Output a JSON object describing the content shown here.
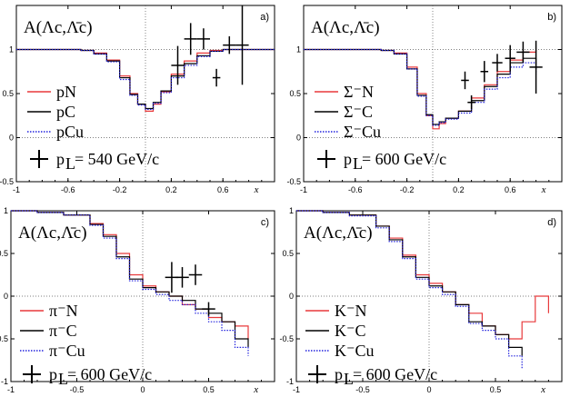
{
  "colors": {
    "red": "#e8393b",
    "black": "#000000",
    "blue": "#2222dd",
    "grid": "#555555"
  },
  "chart_data": [
    {
      "type": "line",
      "panel_label": "a)",
      "title": "A(Λc,Λ̄c)",
      "xlabel": "x",
      "xlim": [
        -1,
        1
      ],
      "ylim": [
        -0.5,
        1.5
      ],
      "xticks": [
        -1,
        -0.6,
        -0.2,
        0.2,
        0.6
      ],
      "xtick_labels": [
        "-1",
        "-0.6",
        "-0.2",
        "0.2",
        "0.6"
      ],
      "yticks": [
        -0.5,
        0,
        0.5,
        1
      ],
      "ytick_labels": [
        "-0.5",
        "0",
        "0.5",
        "1"
      ],
      "legend": [
        "pN",
        "pC",
        "pCu"
      ],
      "beam_label": "p",
      "beam_sub": "L",
      "beam_value": " = 540 GeV/c",
      "series": [
        {
          "name": "pN",
          "style": "red",
          "x": [
            -1,
            -0.8,
            -0.6,
            -0.5,
            -0.4,
            -0.3,
            -0.2,
            -0.12,
            -0.06,
            0,
            0.06,
            0.12,
            0.2,
            0.3,
            0.4,
            0.5,
            0.6,
            0.8,
            1
          ],
          "y": [
            1,
            1,
            1,
            0.99,
            0.96,
            0.88,
            0.7,
            0.5,
            0.38,
            0.3,
            0.38,
            0.52,
            0.72,
            0.87,
            0.96,
            0.99,
            1,
            1,
            1
          ]
        },
        {
          "name": "pC",
          "style": "black",
          "x": [
            -1,
            -0.8,
            -0.6,
            -0.5,
            -0.4,
            -0.3,
            -0.2,
            -0.12,
            -0.06,
            0,
            0.06,
            0.12,
            0.2,
            0.3,
            0.4,
            0.5,
            0.6,
            0.8,
            1
          ],
          "y": [
            1,
            1,
            1,
            0.99,
            0.95,
            0.87,
            0.68,
            0.49,
            0.38,
            0.33,
            0.4,
            0.53,
            0.7,
            0.84,
            0.93,
            0.98,
            1,
            1,
            1
          ]
        },
        {
          "name": "pCu",
          "style": "blue",
          "x": [
            -1,
            -0.8,
            -0.6,
            -0.5,
            -0.4,
            -0.3,
            -0.2,
            -0.12,
            -0.06,
            0,
            0.06,
            0.12,
            0.2,
            0.3,
            0.4,
            0.5,
            0.6,
            0.8,
            1
          ],
          "y": [
            1,
            1,
            1,
            0.99,
            0.95,
            0.86,
            0.66,
            0.48,
            0.37,
            0.32,
            0.39,
            0.51,
            0.68,
            0.82,
            0.92,
            0.98,
            1,
            1,
            1
          ]
        }
      ],
      "data_points": [
        {
          "x": 0.25,
          "y": 0.82,
          "xerr": 0.05,
          "yerr": 0.22
        },
        {
          "x": 0.35,
          "y": 1.12,
          "xerr": 0.05,
          "yerr": 0.18
        },
        {
          "x": 0.45,
          "y": 1.12,
          "xerr": 0.05,
          "yerr": 0.12
        },
        {
          "x": 0.55,
          "y": 0.68,
          "xerr": 0.03,
          "yerr": 0.1
        },
        {
          "x": 0.65,
          "y": 1.05,
          "xerr": 0.05,
          "yerr": 0.1
        },
        {
          "x": 0.75,
          "y": 1.05,
          "xerr": 0.05,
          "yerr": 0.45
        }
      ]
    },
    {
      "type": "line",
      "panel_label": "b)",
      "title": "A(Λc,Λ̄c)",
      "xlabel": "x",
      "xlim": [
        -1,
        1
      ],
      "ylim": [
        -0.5,
        1.5
      ],
      "xticks": [
        -1,
        -0.6,
        -0.2,
        0.2,
        0.6
      ],
      "xtick_labels": [
        "-1",
        "-0.6",
        "-0.2",
        "0.2",
        "0.6"
      ],
      "yticks": [
        -0.5,
        0,
        0.5,
        1
      ],
      "ytick_labels": [
        "-0.5",
        "0",
        "0.5",
        "1"
      ],
      "legend": [
        "Σ⁻N",
        "Σ⁻C",
        "Σ⁻Cu"
      ],
      "beam_label": "p",
      "beam_sub": "L",
      "beam_value": "= 600 GeV/c",
      "series": [
        {
          "name": "Σ-N",
          "style": "red",
          "x": [
            -1,
            -0.6,
            -0.4,
            -0.3,
            -0.2,
            -0.12,
            -0.05,
            0,
            0.05,
            0.1,
            0.2,
            0.3,
            0.4,
            0.5,
            0.6,
            0.7,
            0.8
          ],
          "y": [
            1,
            1,
            0.99,
            0.96,
            0.8,
            0.5,
            0.25,
            0.1,
            0.16,
            0.22,
            0.3,
            0.45,
            0.6,
            0.75,
            0.88,
            0.97,
            1
          ]
        },
        {
          "name": "Σ-C",
          "style": "black",
          "x": [
            -1,
            -0.6,
            -0.4,
            -0.3,
            -0.2,
            -0.12,
            -0.05,
            0,
            0.05,
            0.1,
            0.2,
            0.3,
            0.4,
            0.5,
            0.6,
            0.7,
            0.8
          ],
          "y": [
            1,
            1,
            0.99,
            0.95,
            0.78,
            0.48,
            0.26,
            0.15,
            0.18,
            0.22,
            0.3,
            0.42,
            0.58,
            0.72,
            0.85,
            0.9,
            0.78
          ]
        },
        {
          "name": "Σ-Cu",
          "style": "blue",
          "x": [
            -1,
            -0.6,
            -0.4,
            -0.3,
            -0.2,
            -0.12,
            -0.05,
            0,
            0.05,
            0.1,
            0.2,
            0.3,
            0.4,
            0.5,
            0.6,
            0.7,
            0.8
          ],
          "y": [
            1,
            1,
            0.99,
            0.95,
            0.78,
            0.47,
            0.25,
            0.14,
            0.17,
            0.21,
            0.28,
            0.4,
            0.55,
            0.68,
            0.8,
            0.85,
            0.72
          ]
        }
      ],
      "data_points": [
        {
          "x": 0.25,
          "y": 0.65,
          "xerr": 0.03,
          "yerr": 0.1
        },
        {
          "x": 0.3,
          "y": 0.4,
          "xerr": 0.03,
          "yerr": 0.08
        },
        {
          "x": 0.4,
          "y": 0.75,
          "xerr": 0.03,
          "yerr": 0.12
        },
        {
          "x": 0.5,
          "y": 0.85,
          "xerr": 0.04,
          "yerr": 0.1
        },
        {
          "x": 0.6,
          "y": 0.9,
          "xerr": 0.04,
          "yerr": 0.15
        },
        {
          "x": 0.7,
          "y": 0.97,
          "xerr": 0.05,
          "yerr": 0.12
        },
        {
          "x": 0.8,
          "y": 0.8,
          "xerr": 0.05,
          "yerr": 0.3
        }
      ]
    },
    {
      "type": "line",
      "panel_label": "c)",
      "title": "A(Λc,Λ̄c)",
      "xlabel": "x",
      "xlim": [
        -1,
        1
      ],
      "ylim": [
        -1,
        1
      ],
      "xticks": [
        -1,
        -0.5,
        0,
        0.5
      ],
      "xtick_labels": [
        "-1",
        "-0.5",
        "0",
        "0.5"
      ],
      "yticks": [
        -1,
        -0.5,
        0,
        0.5,
        1
      ],
      "ytick_labels": [
        "-1",
        "-0.5",
        "0",
        "0.5",
        "1"
      ],
      "legend": [
        "π⁻N",
        "π⁻C",
        "π⁻Cu"
      ],
      "beam_label": "p",
      "beam_sub": "L",
      "beam_value": "= 600 GeV/c",
      "series": [
        {
          "name": "π-N",
          "style": "red",
          "x": [
            -1,
            -0.8,
            -0.6,
            -0.4,
            -0.3,
            -0.2,
            -0.1,
            0,
            0.1,
            0.2,
            0.3,
            0.4,
            0.5,
            0.6,
            0.7,
            0.8
          ],
          "y": [
            1,
            0.98,
            0.95,
            0.85,
            0.72,
            0.5,
            0.25,
            0.12,
            0.05,
            0,
            -0.1,
            -0.15,
            -0.25,
            -0.3,
            -0.35,
            -0.5
          ]
        },
        {
          "name": "π-C",
          "style": "black",
          "x": [
            -1,
            -0.8,
            -0.6,
            -0.4,
            -0.3,
            -0.2,
            -0.1,
            0,
            0.1,
            0.2,
            0.3,
            0.4,
            0.5,
            0.6,
            0.7,
            0.8
          ],
          "y": [
            1,
            0.98,
            0.95,
            0.84,
            0.7,
            0.46,
            0.2,
            0.1,
            0.05,
            0,
            -0.05,
            -0.15,
            -0.2,
            -0.3,
            -0.5,
            -0.6
          ]
        },
        {
          "name": "π-Cu",
          "style": "blue",
          "x": [
            -1,
            -0.8,
            -0.6,
            -0.4,
            -0.3,
            -0.2,
            -0.1,
            0,
            0.1,
            0.2,
            0.3,
            0.4,
            0.5,
            0.6,
            0.7,
            0.8
          ],
          "y": [
            1,
            0.98,
            0.95,
            0.83,
            0.68,
            0.44,
            0.18,
            0.08,
            0.02,
            -0.05,
            -0.1,
            -0.2,
            -0.3,
            -0.4,
            -0.6,
            -0.7
          ]
        }
      ],
      "data_points": [
        {
          "x": 0.22,
          "y": 0.22,
          "xerr": 0.05,
          "yerr": 0.18
        },
        {
          "x": 0.3,
          "y": 0.22,
          "xerr": 0.05,
          "yerr": 0.12
        },
        {
          "x": 0.4,
          "y": 0.25,
          "xerr": 0.05,
          "yerr": 0.12
        },
        {
          "x": 0.5,
          "y": -0.15,
          "xerr": 0.05,
          "yerr": 0.08
        }
      ]
    },
    {
      "type": "line",
      "panel_label": "d)",
      "title": "A(Λc,Λ̄c)",
      "xlabel": "x",
      "xlim": [
        -1,
        1
      ],
      "ylim": [
        -1,
        1
      ],
      "xticks": [
        -1,
        -0.5,
        0,
        0.5
      ],
      "xtick_labels": [
        "-1",
        "-0.5",
        "0",
        "0.5"
      ],
      "yticks": [
        -1,
        -0.5,
        0,
        0.5,
        1
      ],
      "ytick_labels": [
        "-1",
        "-0.5",
        "0",
        "0.5",
        "1"
      ],
      "legend": [
        "K⁻N",
        "K⁻C",
        "K⁻Cu"
      ],
      "beam_label": "p",
      "beam_sub": "L",
      "beam_value": "= 600 GeV/c",
      "series": [
        {
          "name": "K-N",
          "style": "red",
          "x": [
            -1,
            -0.8,
            -0.6,
            -0.4,
            -0.3,
            -0.2,
            -0.1,
            0,
            0.1,
            0.2,
            0.3,
            0.4,
            0.5,
            0.6,
            0.7,
            0.8,
            0.9
          ],
          "y": [
            1,
            0.98,
            0.95,
            0.82,
            0.68,
            0.48,
            0.25,
            0.15,
            0.05,
            -0.1,
            -0.2,
            -0.35,
            -0.45,
            -0.5,
            -0.3,
            0,
            -0.2
          ]
        },
        {
          "name": "K-C",
          "style": "black",
          "x": [
            -1,
            -0.8,
            -0.6,
            -0.4,
            -0.3,
            -0.2,
            -0.1,
            0,
            0.1,
            0.2,
            0.3,
            0.4,
            0.5,
            0.6,
            0.7
          ],
          "y": [
            1,
            0.98,
            0.95,
            0.82,
            0.66,
            0.46,
            0.22,
            0.12,
            0.05,
            -0.1,
            -0.3,
            -0.35,
            -0.45,
            -0.6,
            -0.7
          ]
        },
        {
          "name": "K-Cu",
          "style": "blue",
          "x": [
            -1,
            -0.8,
            -0.6,
            -0.4,
            -0.3,
            -0.2,
            -0.1,
            0,
            0.1,
            0.2,
            0.3,
            0.4,
            0.5,
            0.6,
            0.7
          ],
          "y": [
            1,
            0.98,
            0.94,
            0.8,
            0.64,
            0.44,
            0.2,
            0.1,
            0.02,
            -0.12,
            -0.32,
            -0.4,
            -0.5,
            -0.7,
            -0.85
          ]
        }
      ],
      "data_points": []
    }
  ]
}
